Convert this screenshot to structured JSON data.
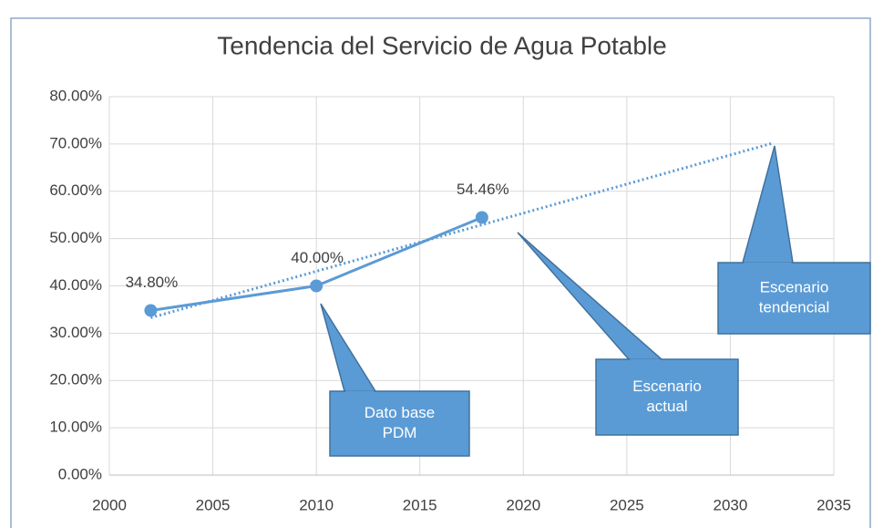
{
  "chart_data": {
    "type": "line",
    "title": "Tendencia del Servicio de Agua Potable",
    "x": [
      2002,
      2010,
      2018
    ],
    "series": [
      {
        "color": "#5b9bd5",
        "values": [
          34.8,
          40.0,
          54.46
        ],
        "value_labels": [
          "34.80%",
          "40.00%",
          "54.46%"
        ]
      }
    ],
    "trendline": {
      "color": "#5b9bd5",
      "style": "dotted",
      "x": [
        2002,
        2032
      ],
      "values": [
        33.26,
        70.12
      ]
    },
    "xlim": [
      2000,
      2035
    ],
    "xticks": [
      2000,
      2005,
      2010,
      2015,
      2020,
      2025,
      2030,
      2035
    ],
    "ylim": [
      0,
      80
    ],
    "yticks": [
      {
        "value": 0,
        "label": "0.00%"
      },
      {
        "value": 10,
        "label": "10.00%"
      },
      {
        "value": 20,
        "label": "20.00%"
      },
      {
        "value": 30,
        "label": "30.00%"
      },
      {
        "value": 40,
        "label": "40.00%"
      },
      {
        "value": 50,
        "label": "50.00%"
      },
      {
        "value": 60,
        "label": "60.00%"
      },
      {
        "value": 70,
        "label": "70.00%"
      },
      {
        "value": 80,
        "label": "80.00%"
      }
    ],
    "grid": true,
    "annotations": [
      {
        "lines": [
          "Dato base",
          "PDM"
        ]
      },
      {
        "lines": [
          "Escenario",
          "actual"
        ]
      },
      {
        "lines": [
          "Escenario",
          "tendencial"
        ]
      }
    ]
  }
}
